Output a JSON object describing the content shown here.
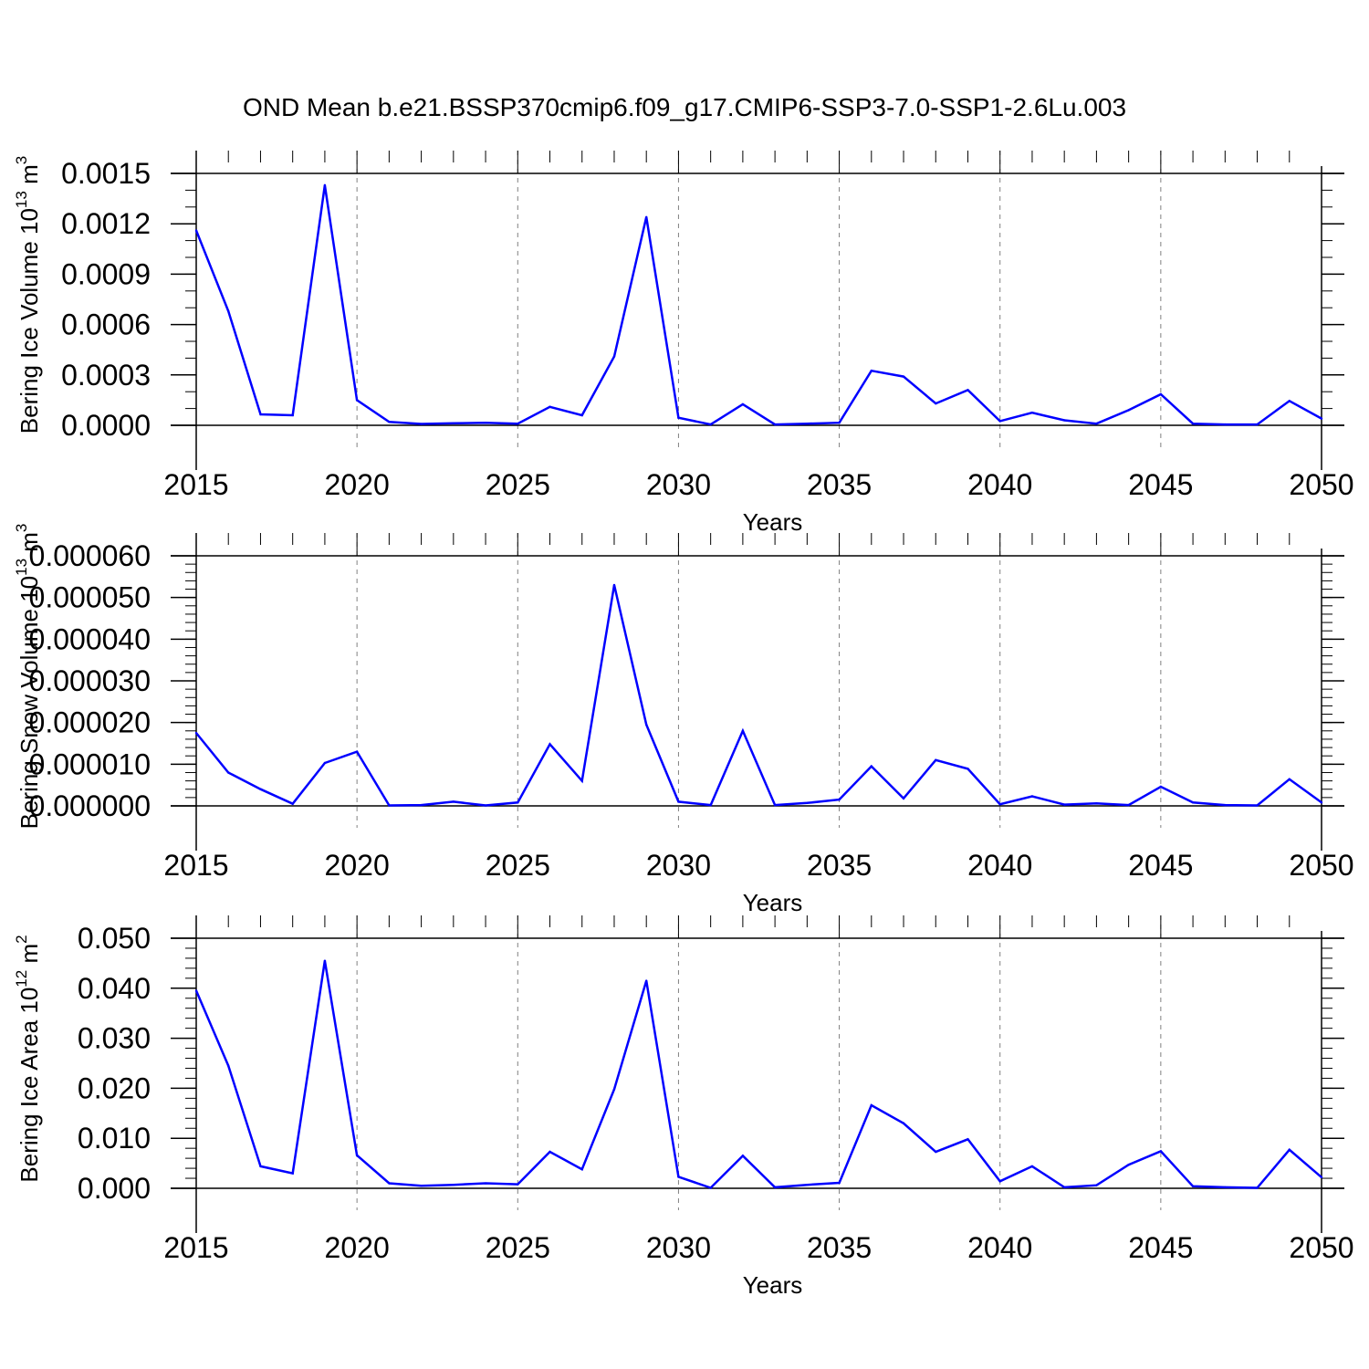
{
  "title": "OND Mean b.e21.BSSP370cmip6.f09_g17.CMIP6-SSP3-7.0-SSP1-2.6Lu.003",
  "colors": {
    "line": "#0000ff",
    "axis": "#000000",
    "grid": "#808080"
  },
  "chart_data": [
    {
      "type": "line",
      "title": "",
      "xlabel": "Years",
      "ylabel": "Bering Ice Volume 10",
      "ylabel_exp": "13",
      "ylabel_unit": "m",
      "ylabel_unit_exp": "3",
      "xlim": [
        2015,
        2050
      ],
      "ylim": [
        0,
        0.0015
      ],
      "xticks": [
        2015,
        2020,
        2025,
        2030,
        2035,
        2040,
        2045,
        2050
      ],
      "xtick_labels": [
        "2015",
        "2020",
        "2025",
        "2030",
        "2035",
        "2040",
        "2045",
        "2050"
      ],
      "yticks": [
        0,
        0.0003,
        0.0006,
        0.0009,
        0.0012,
        0.0015
      ],
      "ytick_labels": [
        "0.0000",
        "0.0003",
        "0.0006",
        "0.0009",
        "0.0012",
        "0.0015"
      ],
      "x_minor_step": 1,
      "y_minor_step": 0.0001,
      "grid": "vertical dashed at major x ticks",
      "series": [
        {
          "x": [
            2015,
            2016,
            2017,
            2018,
            2019,
            2020,
            2021,
            2022,
            2023,
            2024,
            2025,
            2026,
            2027,
            2028,
            2029,
            2030,
            2031,
            2032,
            2033,
            2034,
            2035,
            2036,
            2037,
            2038,
            2039,
            2040,
            2041,
            2042,
            2043,
            2044,
            2045,
            2046,
            2047,
            2048,
            2049,
            2050
          ],
          "values": [
            0.00116,
            0.00068,
            6.5e-05,
            6e-05,
            0.00143,
            0.00015,
            2e-05,
            8e-06,
            1.2e-05,
            1.5e-05,
            1e-05,
            0.00011,
            6e-05,
            0.00041,
            0.00124,
            4.5e-05,
            5e-06,
            0.000125,
            5e-06,
            1e-05,
            1.5e-05,
            0.000325,
            0.00029,
            0.00013,
            0.00021,
            2.5e-05,
            7.5e-05,
            3e-05,
            1e-05,
            9e-05,
            0.000185,
            1e-05,
            5e-06,
            5e-06,
            0.000145,
            4e-05
          ]
        }
      ]
    },
    {
      "type": "line",
      "title": "",
      "xlabel": "Years",
      "ylabel": "Bering Snow Volume 10",
      "ylabel_exp": "13",
      "ylabel_unit": "m",
      "ylabel_unit_exp": "3",
      "xlim": [
        2015,
        2050
      ],
      "ylim": [
        0,
        6e-05
      ],
      "xticks": [
        2015,
        2020,
        2025,
        2030,
        2035,
        2040,
        2045,
        2050
      ],
      "xtick_labels": [
        "2015",
        "2020",
        "2025",
        "2030",
        "2035",
        "2040",
        "2045",
        "2050"
      ],
      "yticks": [
        0,
        1e-05,
        2e-05,
        3e-05,
        4e-05,
        5e-05,
        6e-05
      ],
      "ytick_labels": [
        "0.000000",
        "0.000010",
        "0.000020",
        "0.000030",
        "0.000040",
        "0.000050",
        "0.000060"
      ],
      "x_minor_step": 1,
      "y_minor_step": 2e-06,
      "grid": "vertical dashed at major x ticks",
      "series": [
        {
          "x": [
            2015,
            2016,
            2017,
            2018,
            2019,
            2020,
            2021,
            2022,
            2023,
            2024,
            2025,
            2026,
            2027,
            2028,
            2029,
            2030,
            2031,
            2032,
            2033,
            2034,
            2035,
            2036,
            2037,
            2038,
            2039,
            2040,
            2041,
            2042,
            2043,
            2044,
            2045,
            2046,
            2047,
            2048,
            2049,
            2050
          ],
          "values": [
            1.75e-05,
            8e-06,
            4e-06,
            5e-07,
            1.03e-05,
            1.3e-05,
            1e-07,
            2e-07,
            1e-06,
            1e-07,
            8e-07,
            1.48e-05,
            6e-06,
            5.3e-05,
            1.95e-05,
            1e-06,
            2e-07,
            1.8e-05,
            2e-07,
            7e-07,
            1.5e-06,
            9.5e-06,
            1.8e-06,
            1.1e-05,
            8.9e-06,
            4e-07,
            2.3e-06,
            3e-07,
            6e-07,
            2e-07,
            4.6e-06,
            8e-07,
            2e-07,
            1e-07,
            6.4e-06,
            8e-07
          ]
        }
      ]
    },
    {
      "type": "line",
      "title": "",
      "xlabel": "Years",
      "ylabel": "Bering Ice Area 10",
      "ylabel_exp": "12",
      "ylabel_unit": "m",
      "ylabel_unit_exp": "2",
      "xlim": [
        2015,
        2050
      ],
      "ylim": [
        0,
        0.05
      ],
      "xticks": [
        2015,
        2020,
        2025,
        2030,
        2035,
        2040,
        2045,
        2050
      ],
      "xtick_labels": [
        "2015",
        "2020",
        "2025",
        "2030",
        "2035",
        "2040",
        "2045",
        "2050"
      ],
      "yticks": [
        0,
        0.01,
        0.02,
        0.03,
        0.04,
        0.05
      ],
      "ytick_labels": [
        "0.000",
        "0.010",
        "0.020",
        "0.030",
        "0.040",
        "0.050"
      ],
      "x_minor_step": 1,
      "y_minor_step": 0.002,
      "grid": "vertical dashed at major x ticks",
      "series": [
        {
          "x": [
            2015,
            2016,
            2017,
            2018,
            2019,
            2020,
            2021,
            2022,
            2023,
            2024,
            2025,
            2026,
            2027,
            2028,
            2029,
            2030,
            2031,
            2032,
            2033,
            2034,
            2035,
            2036,
            2037,
            2038,
            2039,
            2040,
            2041,
            2042,
            2043,
            2044,
            2045,
            2046,
            2047,
            2048,
            2049,
            2050
          ],
          "values": [
            0.0395,
            0.0245,
            0.0044,
            0.003,
            0.0455,
            0.0066,
            0.001,
            0.0005,
            0.0007,
            0.001,
            0.0008,
            0.0073,
            0.0038,
            0.0198,
            0.0415,
            0.0023,
            0.0001,
            0.0065,
            0.0002,
            0.0007,
            0.0011,
            0.0166,
            0.013,
            0.0073,
            0.0098,
            0.0014,
            0.0044,
            0.0002,
            0.0006,
            0.0047,
            0.0074,
            0.0004,
            0.0002,
            0.0001,
            0.0077,
            0.0022
          ]
        }
      ]
    }
  ]
}
